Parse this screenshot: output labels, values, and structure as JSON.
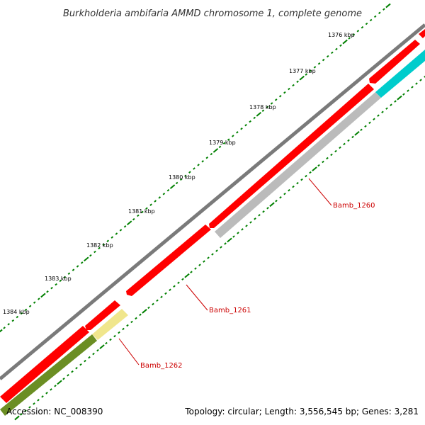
{
  "title": "Burkholderia ambifaria AMMD chromosome 1, complete genome",
  "scale_labels": [
    "1376 kbp",
    "1377 kbp",
    "1378 kbp",
    "1379 kbp",
    "1380 kbp",
    "1381 kbp",
    "1382 kbp",
    "1383 kbp",
    "1384 kbp"
  ],
  "genes": {
    "bamb_1260": "Bamb_1260",
    "bamb_1261": "Bamb_1261",
    "bamb_1262": "Bamb_1262"
  },
  "footer": {
    "accession": "Accession: NC_008390",
    "topology": "Topology: circular; Length: 3,556,545 bp; Genes: 3,281"
  },
  "colors": {
    "backbone": "#7a7a7a",
    "cds": "#ff0000",
    "gray_feature": "#bbbbbb",
    "cyan_feature": "#00cccc",
    "yellow_feature": "#f0e68c",
    "olive_feature": "#6b8e23",
    "ticks": "#008000",
    "gene_label": "#cc0000"
  }
}
